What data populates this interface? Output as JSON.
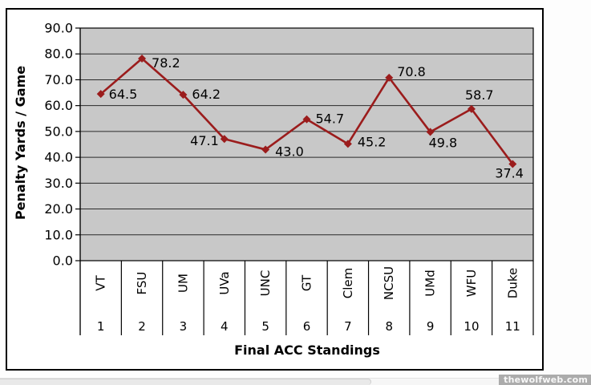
{
  "watermark": "thewolfweb.com",
  "colors": {
    "series": "#9b1c1c",
    "plot_bg": "#c8c8c8",
    "grid": "#2a2a2a",
    "axis": "#000000",
    "frame_border": "#000000",
    "label_text": "#000000",
    "watermark_bg": "#acacac",
    "watermark_text": "#f8f8f8"
  },
  "chart_data": {
    "type": "line",
    "title": "",
    "xlabel": "Final ACC Standings",
    "ylabel": "Penalty Yards / Game",
    "categories": [
      "VT",
      "FSU",
      "UM",
      "UVa",
      "UNC",
      "GT",
      "Clem",
      "NCSU",
      "UMd",
      "WFU",
      "Duke"
    ],
    "category_numbers": [
      "1",
      "2",
      "3",
      "4",
      "5",
      "6",
      "7",
      "8",
      "9",
      "10",
      "11"
    ],
    "series": [
      {
        "name": "Penalty Yards / Game",
        "values": [
          64.5,
          78.2,
          64.2,
          47.1,
          43.0,
          54.7,
          45.2,
          70.8,
          49.8,
          58.7,
          37.4
        ]
      }
    ],
    "data_labels": [
      "64.5",
      "78.2",
      "64.2",
      "47.1",
      "43.0",
      "54.7",
      "45.2",
      "70.8",
      "49.8",
      "58.7",
      "37.4"
    ],
    "ylim": [
      0,
      90
    ],
    "ytick_step": 10,
    "ytick_labels": [
      "0.0",
      "10.0",
      "20.0",
      "30.0",
      "40.0",
      "50.0",
      "60.0",
      "70.0",
      "80.0",
      "90.0"
    ],
    "marker": "diamond",
    "grid": "horizontal",
    "legend": "none"
  }
}
